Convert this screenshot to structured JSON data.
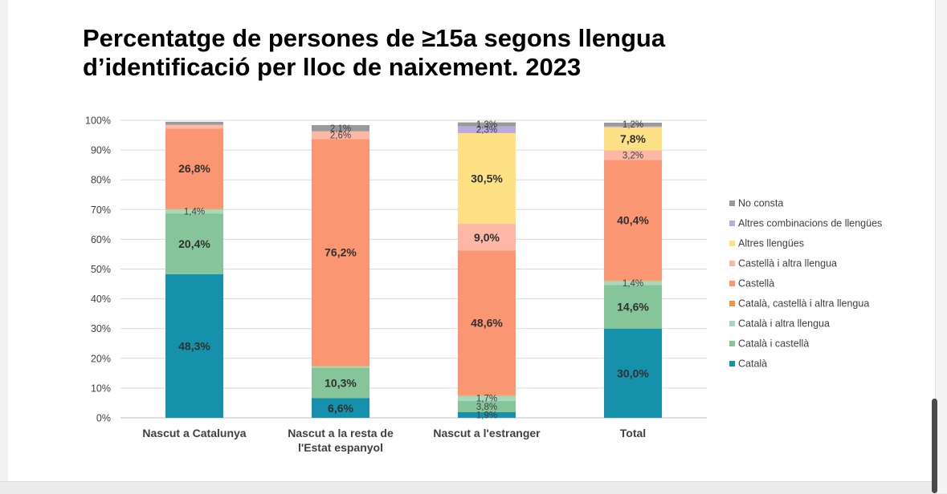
{
  "title_line1": "Percentatge de persones de ≥15a segons llengua",
  "title_line2": "d’identificació per lloc de naixement. 2023",
  "chart_data": {
    "type": "bar",
    "stacked": true,
    "title": "Percentatge de persones de ≥15a segons llengua d’identificació per lloc de naixement. 2023",
    "xlabel": "",
    "ylabel": "",
    "ylim": [
      0,
      100
    ],
    "y_ticks": [
      "0%",
      "10%",
      "20%",
      "30%",
      "40%",
      "50%",
      "60%",
      "70%",
      "80%",
      "90%",
      "100%"
    ],
    "grid": true,
    "legend_position": "right",
    "categories": [
      [
        "Nascut a Catalunya"
      ],
      [
        "Nascut a la resta de",
        "l'Estat espanyol"
      ],
      [
        "Nascut a l'estranger"
      ],
      [
        "Total"
      ]
    ],
    "series": [
      {
        "name": "Català",
        "color": "#1591ab",
        "values": [
          48.3,
          6.6,
          1.9,
          30.0
        ],
        "labels": [
          "48,3%",
          "6,6%",
          "1,9%",
          "30,0%"
        ]
      },
      {
        "name": "Català i castellà",
        "color": "#86c59a",
        "values": [
          20.4,
          10.3,
          3.8,
          14.6
        ],
        "labels": [
          "20,4%",
          "10,3%",
          "3,8%",
          "14,6%"
        ]
      },
      {
        "name": "Català i altra llengua",
        "color": "#a7d8bc",
        "values": [
          1.4,
          0.4,
          1.7,
          1.4
        ],
        "labels": [
          "1,4%",
          "",
          "1,7%",
          "1,4%"
        ]
      },
      {
        "name": "Català, castellà i altra llengua",
        "color": "#f5943d",
        "values": [
          0.3,
          0.2,
          0.2,
          0.3
        ],
        "labels": [
          "",
          "",
          "",
          ""
        ]
      },
      {
        "name": "Castellà",
        "color": "#fb9672",
        "values": [
          26.8,
          76.2,
          48.6,
          40.4
        ],
        "labels": [
          "26,8%",
          "76,2%",
          "48,6%",
          "40,4%"
        ]
      },
      {
        "name": "Castellà i altra llengua",
        "color": "#fcb7a6",
        "values": [
          1.3,
          2.6,
          9.0,
          3.2
        ],
        "labels": [
          "",
          "2,6%",
          "9,0%",
          "3,2%"
        ]
      },
      {
        "name": "Altres llengües",
        "color": "#fde184",
        "values": [
          0.0,
          0.0,
          30.5,
          7.8
        ],
        "labels": [
          "",
          "",
          "30,5%",
          "7,8%"
        ]
      },
      {
        "name": "Altres combinacions de llengües",
        "color": "#b9a9dd",
        "values": [
          0.0,
          0.0,
          2.3,
          0.3
        ],
        "labels": [
          "",
          "",
          "2,3%",
          ""
        ]
      },
      {
        "name": "No consta",
        "color": "#9a9a9a",
        "values": [
          1.0,
          2.1,
          1.3,
          1.2
        ],
        "labels": [
          "",
          "2,1%",
          "1,3%",
          "1,2%"
        ]
      }
    ]
  }
}
